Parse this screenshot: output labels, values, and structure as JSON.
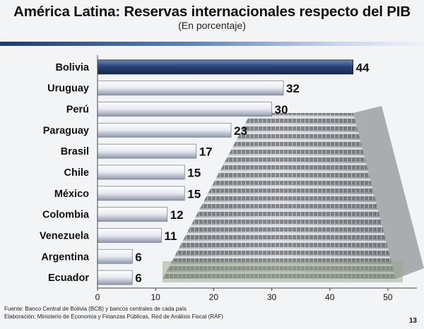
{
  "title": "América Latina: Reservas internacionales respecto del PIB",
  "subtitle": "(En porcentaje)",
  "footer": {
    "source": "Fuente: Banco Central de Bolivia (BCB) y  bancos centrales de cada país",
    "elaboration": "Elaboración: Ministerio de Economía y Finanzas Públicas, Red de Análisis Fiscal (RAF)"
  },
  "page_number": "13",
  "colors": {
    "highlight": "#1f3866",
    "bar_light": "#e9ecf4",
    "bar_dark": "#8f97ab"
  },
  "chart_data": {
    "type": "bar",
    "orientation": "horizontal",
    "title": "América Latina: Reservas internacionales respecto del PIB",
    "subtitle": "(En porcentaje)",
    "categories": [
      "Bolivia",
      "Uruguay",
      "Perú",
      "Paraguay",
      "Brasil",
      "Chile",
      "México",
      "Colombia",
      "Venezuela",
      "Argentina",
      "Ecuador"
    ],
    "values": [
      44,
      32,
      30,
      23,
      17,
      15,
      15,
      12,
      11,
      6,
      6
    ],
    "highlight_category": "Bolivia",
    "xlim": [
      0,
      55
    ],
    "xticks": [
      0,
      10,
      20,
      30,
      40,
      50
    ],
    "xlabel": "",
    "ylabel": ""
  }
}
